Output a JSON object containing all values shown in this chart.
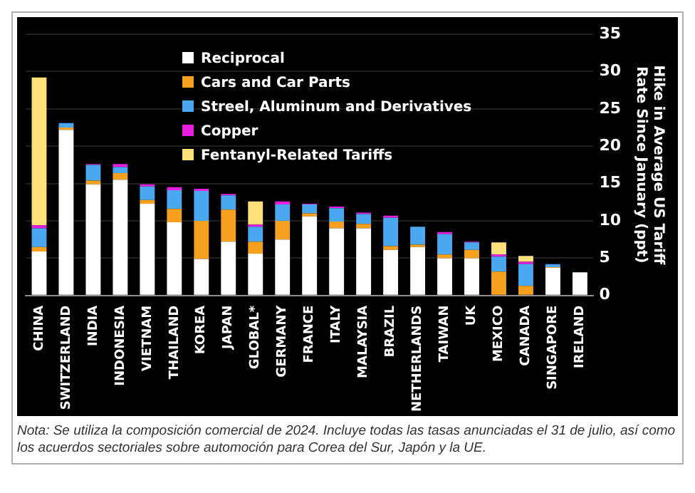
{
  "chart_data": {
    "type": "bar",
    "stacked": true,
    "ylabel": "Hike in Average US Tariff Rate Since January (ppt)",
    "categories": [
      "CHINA",
      "SWITZERLAND",
      "INDIA",
      "INDONESIA",
      "VIETNAM",
      "THAILAND",
      "KOREA",
      "JAPAN",
      "GLOBAL*",
      "GERMANY",
      "FRANCE",
      "ITALY",
      "MALAYSIA",
      "BRAZIL",
      "NETHERLANDS",
      "TAIWAN",
      "UK",
      "MEXICO",
      "CANADA",
      "SINGAPORE",
      "IRELAND"
    ],
    "series": [
      {
        "name": "Reciprocal",
        "color": "#ffffff",
        "values": [
          5.9,
          22.2,
          14.9,
          15.5,
          12.3,
          9.8,
          4.9,
          7.2,
          5.6,
          7.5,
          10.6,
          9.0,
          9.0,
          6.1,
          6.5,
          5.0,
          5.0,
          0,
          0,
          3.7,
          3.1
        ]
      },
      {
        "name": "Cars and Car Parts",
        "color": "#f5a01e",
        "values": [
          0.6,
          0.3,
          0.5,
          0.9,
          0.5,
          1.8,
          5.1,
          4.3,
          1.6,
          2.5,
          0.4,
          0.9,
          0.6,
          0.5,
          0.3,
          0.5,
          1.1,
          3.2,
          1.3,
          0.1,
          0
        ]
      },
      {
        "name": "Streel, Aluminum and Derivatives",
        "color": "#4aa8f0",
        "values": [
          2.5,
          0.6,
          2.1,
          0.8,
          1.8,
          2.5,
          4.0,
          1.9,
          2.0,
          2.2,
          1.2,
          1.8,
          1.3,
          3.8,
          2.4,
          2.7,
          1.0,
          2.0,
          2.9,
          0.4,
          0
        ]
      },
      {
        "name": "Copper",
        "color": "#e81ee0",
        "values": [
          0.4,
          0,
          0.1,
          0.4,
          0.3,
          0.4,
          0.3,
          0.2,
          0.3,
          0.4,
          0.1,
          0.2,
          0.2,
          0.3,
          0,
          0.3,
          0.1,
          0.3,
          0.3,
          0,
          0
        ]
      },
      {
        "name": "Fentanyl-Related Tariffs",
        "color": "#fde07a",
        "values": [
          19.8,
          0,
          0,
          0,
          0,
          0,
          0,
          0,
          3.1,
          0,
          0,
          0,
          0,
          0,
          0,
          0,
          0,
          1.6,
          0.8,
          0,
          0
        ]
      }
    ],
    "ylim": [
      0,
      35
    ],
    "yticks": [
      0,
      5,
      10,
      15,
      20,
      25,
      30,
      35
    ],
    "grid": "y",
    "legend": "top",
    "annotations": [
      "Nota: Se utiliza la composición comercial de 2024. Incluye todas las tasas anunciadas el 31 de julio, así como los acuerdos sectoriales sobre automoción para Corea del Sur, Japón y la UE."
    ]
  }
}
